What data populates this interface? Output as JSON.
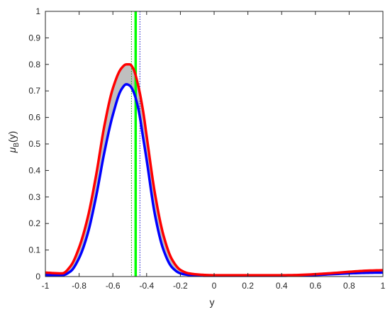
{
  "chart_data": {
    "type": "line",
    "title": "",
    "xlabel": "y",
    "ylabel": {
      "base": "μ",
      "sub": "B",
      "tail": "(y)"
    },
    "xlim": [
      -1,
      1
    ],
    "ylim": [
      0,
      1
    ],
    "x_ticks": [
      -1,
      -0.8,
      -0.6,
      -0.4,
      -0.2,
      0,
      0.2,
      0.4,
      0.6,
      0.8,
      1
    ],
    "x_tick_labels": [
      "-1",
      "-0.8",
      "-0.6",
      "-0.4",
      "-0.2",
      "0",
      "0.2",
      "0.4",
      "0.6",
      "0.8",
      "1"
    ],
    "y_ticks": [
      0,
      0.1,
      0.2,
      0.3,
      0.4,
      0.5,
      0.6,
      0.7,
      0.8,
      0.9,
      1
    ],
    "y_tick_labels": [
      "0",
      "0.1",
      "0.2",
      "0.3",
      "0.4",
      "0.5",
      "0.6",
      "0.7",
      "0.8",
      "0.9",
      "1"
    ],
    "grid": false,
    "legend": "none",
    "series": [
      {
        "role": "upper",
        "color": "#ff0000",
        "x": [
          -1,
          -0.95,
          -0.9,
          -0.85,
          -0.8,
          -0.75,
          -0.7,
          -0.65,
          -0.6,
          -0.55,
          -0.52,
          -0.5,
          -0.48,
          -0.45,
          -0.42,
          -0.4,
          -0.35,
          -0.3,
          -0.25,
          -0.2,
          -0.15,
          -0.1,
          -0.05,
          0,
          0.1,
          0.2,
          0.3,
          0.4,
          0.5,
          0.6,
          0.7,
          0.8,
          0.9,
          1
        ],
        "y": [
          0.015,
          0.013,
          0.012,
          0.04,
          0.11,
          0.22,
          0.38,
          0.57,
          0.71,
          0.785,
          0.8,
          0.8,
          0.785,
          0.72,
          0.62,
          0.53,
          0.31,
          0.155,
          0.065,
          0.025,
          0.012,
          0.008,
          0.006,
          0.005,
          0.005,
          0.005,
          0.005,
          0.005,
          0.006,
          0.009,
          0.013,
          0.018,
          0.022,
          0.024
        ]
      },
      {
        "role": "lower",
        "color": "#0000ff",
        "x": [
          -1,
          -0.95,
          -0.9,
          -0.85,
          -0.8,
          -0.75,
          -0.7,
          -0.65,
          -0.6,
          -0.55,
          -0.52,
          -0.5,
          -0.48,
          -0.45,
          -0.42,
          -0.4,
          -0.35,
          -0.3,
          -0.25,
          -0.2,
          -0.15,
          -0.1,
          -0.05,
          0,
          0.1,
          0.2,
          0.3,
          0.4,
          0.5,
          0.6,
          0.7,
          0.8,
          0.9,
          1
        ],
        "y": [
          0.006,
          0.005,
          0.005,
          0.02,
          0.07,
          0.16,
          0.3,
          0.47,
          0.61,
          0.705,
          0.725,
          0.72,
          0.7,
          0.635,
          0.52,
          0.44,
          0.23,
          0.1,
          0.035,
          0.012,
          0.006,
          0.004,
          0.003,
          0.003,
          0.003,
          0.003,
          0.003,
          0.003,
          0.004,
          0.006,
          0.009,
          0.012,
          0.014,
          0.015
        ]
      }
    ],
    "fill_between": {
      "color": "#bfbfbf"
    },
    "vertical_lines": [
      {
        "x": -0.465,
        "color": "#00ff00",
        "style": "solid",
        "weight": "thick"
      },
      {
        "x": -0.49,
        "color": "#00a000",
        "style": "dotted",
        "weight": "thin"
      },
      {
        "x": -0.44,
        "color": "#0000c0",
        "style": "dotted",
        "weight": "thin"
      }
    ]
  }
}
